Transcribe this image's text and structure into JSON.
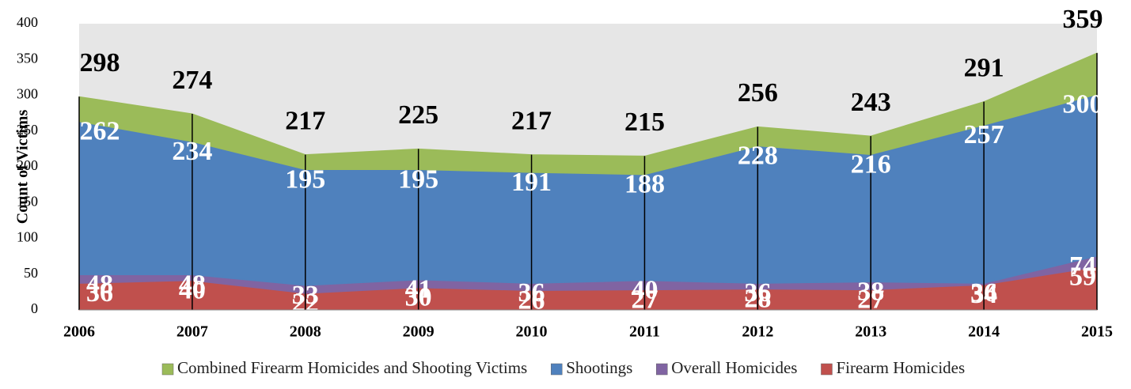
{
  "chart_data": {
    "type": "area",
    "y_label": "Count of Victims",
    "categories": [
      "2006",
      "2007",
      "2008",
      "2009",
      "2010",
      "2011",
      "2012",
      "2013",
      "2014",
      "2015"
    ],
    "series": [
      {
        "name": "Combined Firearm Homicides and Shooting Victims",
        "color": "#9bbb59",
        "values": [
          298,
          274,
          217,
          225,
          217,
          215,
          256,
          243,
          291,
          359
        ]
      },
      {
        "name": "Shootings",
        "color": "#4f81bd",
        "values": [
          262,
          234,
          195,
          195,
          191,
          188,
          228,
          216,
          257,
          300
        ]
      },
      {
        "name": "Overall Homicides",
        "color": "#8064a2",
        "values": [
          48,
          48,
          33,
          41,
          36,
          40,
          36,
          38,
          36,
          74
        ]
      },
      {
        "name": "Firearm Homicides",
        "color": "#c0504d",
        "values": [
          36,
          40,
          22,
          30,
          26,
          27,
          28,
          27,
          34,
          59
        ]
      }
    ],
    "ylim": [
      0,
      400
    ],
    "yticks": [
      0,
      50,
      100,
      150,
      200,
      250,
      300,
      350,
      400
    ],
    "drop_lines": true,
    "legend": "bottom"
  }
}
